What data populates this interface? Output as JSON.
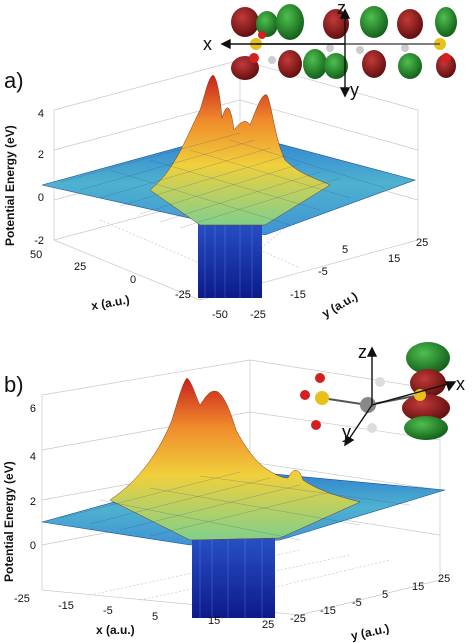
{
  "panels": [
    {
      "letter": "a)",
      "ylabel": "Potential Energy (eV)",
      "xlabel": "x (a.u.)",
      "ylabel2": "y (a.u.)",
      "z_ticks": [
        "-2",
        "0",
        "2",
        "4"
      ],
      "x_ticks": [
        "50",
        "25",
        "0",
        "-25"
      ],
      "x_ticks2": [
        "-50",
        "-25"
      ],
      "y_ticks": [
        "-15",
        "-5",
        "5",
        "15",
        "25"
      ],
      "mol_axes": {
        "x": "x",
        "y": "y",
        "z": "z"
      }
    },
    {
      "letter": "b)",
      "ylabel": "Potential Energy (eV)",
      "xlabel": "x (a.u.)",
      "ylabel2": "y (a.u.)",
      "z_ticks": [
        "0",
        "2",
        "4",
        "6"
      ],
      "x_ticks": [
        "-25",
        "-15",
        "-5",
        "5",
        "15",
        "25"
      ],
      "y_ticks": [
        "-25",
        "-15",
        "-5",
        "5",
        "15",
        "25"
      ],
      "mol_axes": {
        "x": "x",
        "y": "y",
        "z": "z"
      }
    }
  ],
  "colors": {
    "surface_low": "#2a7fd4",
    "surface_mid": "#7fd6a8",
    "surface_peak": "#e0352b",
    "well": "#1a2fb0",
    "lobe_red": "#8b1a1a",
    "lobe_green": "#1f8a2a",
    "sulfur": "#e8c21a",
    "oxygen": "#d42020"
  }
}
